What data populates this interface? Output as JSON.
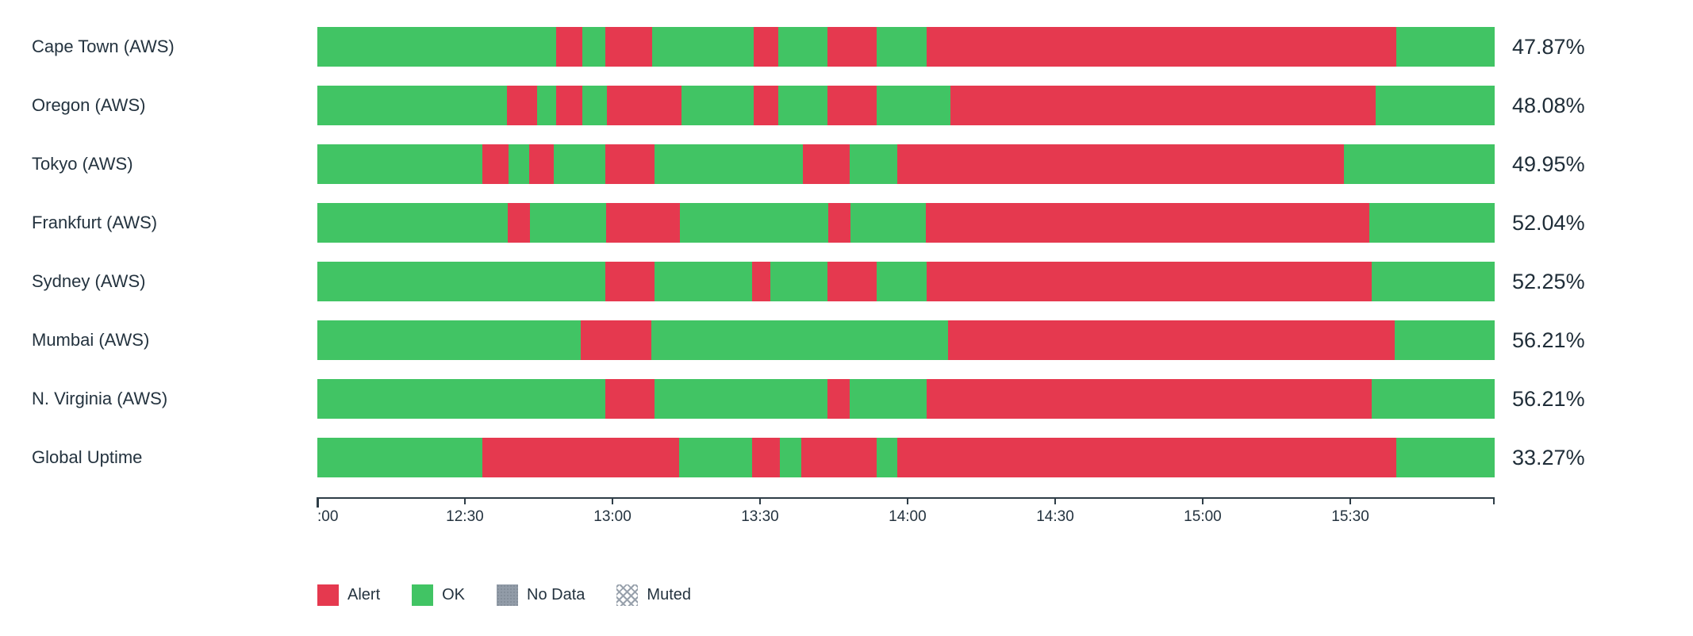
{
  "chart_data": {
    "type": "bar",
    "subtype": "status-timeline-horizontal",
    "title": "",
    "xlabel": "",
    "ylabel": "",
    "grid": false,
    "legend_position": "bottom-left",
    "x_axis": {
      "start": "12:00",
      "end": "16:00",
      "tick_interval_minutes": 30,
      "ticks": [
        {
          "label": ":00",
          "pos": 0,
          "align": "left"
        },
        {
          "label": "12:30",
          "pos": 12.53
        },
        {
          "label": "13:00",
          "pos": 25.07
        },
        {
          "label": "13:30",
          "pos": 37.6
        },
        {
          "label": "14:00",
          "pos": 50.13
        },
        {
          "label": "14:30",
          "pos": 62.67
        },
        {
          "label": "15:00",
          "pos": 75.2
        },
        {
          "label": "15:30",
          "pos": 87.74
        }
      ],
      "end_tick_pos": 100
    },
    "categories": [
      "Cape Town (AWS)",
      "Oregon (AWS)",
      "Tokyo (AWS)",
      "Frankfurt (AWS)",
      "Sydney (AWS)",
      "Mumbai (AWS)",
      "N. Virginia (AWS)",
      "Global Uptime"
    ],
    "values": [
      "47.87%",
      "48.08%",
      "49.95%",
      "52.04%",
      "52.25%",
      "56.21%",
      "56.21%",
      "33.27%"
    ],
    "rows": [
      {
        "label": "Cape Town (AWS)",
        "value": "47.87%",
        "segments": [
          {
            "status": "ok",
            "start": "12:00",
            "end": "12:49",
            "pct": 20.28
          },
          {
            "status": "alert",
            "start": "12:49",
            "end": "12:54",
            "pct": 2.22
          },
          {
            "status": "ok",
            "start": "12:54",
            "end": "12:59",
            "pct": 1.95
          },
          {
            "status": "alert",
            "start": "12:59",
            "end": "13:08",
            "pct": 3.98
          },
          {
            "status": "ok",
            "start": "13:08",
            "end": "13:29",
            "pct": 8.63
          },
          {
            "status": "alert",
            "start": "13:29",
            "end": "13:34",
            "pct": 2.09
          },
          {
            "status": "ok",
            "start": "13:34",
            "end": "13:44",
            "pct": 4.18
          },
          {
            "status": "alert",
            "start": "13:44",
            "end": "13:54",
            "pct": 4.18
          },
          {
            "status": "ok",
            "start": "13:54",
            "end": "14:04",
            "pct": 4.25
          },
          {
            "status": "alert",
            "start": "14:04",
            "end": "15:40",
            "pct": 39.89
          },
          {
            "status": "ok",
            "start": "15:40",
            "end": "16:00",
            "pct": 8.36
          }
        ]
      },
      {
        "label": "Oregon (AWS)",
        "value": "48.08%",
        "segments": [
          {
            "status": "ok",
            "start": "12:00",
            "end": "12:39",
            "pct": 16.11
          },
          {
            "status": "alert",
            "start": "12:39",
            "end": "12:45",
            "pct": 2.56
          },
          {
            "status": "ok",
            "start": "12:45",
            "end": "12:49",
            "pct": 1.62
          },
          {
            "status": "alert",
            "start": "12:49",
            "end": "12:54",
            "pct": 2.22
          },
          {
            "status": "ok",
            "start": "12:54",
            "end": "12:59",
            "pct": 2.09
          },
          {
            "status": "alert",
            "start": "12:59",
            "end": "13:14",
            "pct": 6.33
          },
          {
            "status": "ok",
            "start": "13:14",
            "end": "13:29",
            "pct": 6.13
          },
          {
            "status": "alert",
            "start": "13:29",
            "end": "13:34",
            "pct": 2.09
          },
          {
            "status": "ok",
            "start": "13:34",
            "end": "13:44",
            "pct": 4.18
          },
          {
            "status": "alert",
            "start": "13:44",
            "end": "13:54",
            "pct": 4.18
          },
          {
            "status": "ok",
            "start": "13:54",
            "end": "14:09",
            "pct": 6.27
          },
          {
            "status": "alert",
            "start": "14:09",
            "end": "15:36",
            "pct": 36.12
          },
          {
            "status": "ok",
            "start": "15:36",
            "end": "16:00",
            "pct": 10.11
          }
        ]
      },
      {
        "label": "Tokyo (AWS)",
        "value": "49.95%",
        "segments": [
          {
            "status": "ok",
            "start": "12:00",
            "end": "12:34",
            "pct": 14.02
          },
          {
            "status": "alert",
            "start": "12:34",
            "end": "12:39",
            "pct": 2.22
          },
          {
            "status": "ok",
            "start": "12:39",
            "end": "12:43",
            "pct": 1.75
          },
          {
            "status": "alert",
            "start": "12:43",
            "end": "12:48",
            "pct": 2.09
          },
          {
            "status": "ok",
            "start": "12:48",
            "end": "12:59",
            "pct": 4.38
          },
          {
            "status": "alert",
            "start": "12:59",
            "end": "13:09",
            "pct": 4.18
          },
          {
            "status": "ok",
            "start": "13:09",
            "end": "13:39",
            "pct": 12.6
          },
          {
            "status": "alert",
            "start": "13:39",
            "end": "13:49",
            "pct": 3.98
          },
          {
            "status": "ok",
            "start": "13:49",
            "end": "13:58",
            "pct": 4.04
          },
          {
            "status": "alert",
            "start": "13:58",
            "end": "15:29",
            "pct": 37.94
          },
          {
            "status": "ok",
            "start": "15:29",
            "end": "16:00",
            "pct": 12.8
          }
        ]
      },
      {
        "label": "Frankfurt (AWS)",
        "value": "52.04%",
        "segments": [
          {
            "status": "ok",
            "start": "12:00",
            "end": "12:39",
            "pct": 16.17
          },
          {
            "status": "alert",
            "start": "12:39",
            "end": "12:43",
            "pct": 1.89
          },
          {
            "status": "ok",
            "start": "12:43",
            "end": "12:59",
            "pct": 6.47
          },
          {
            "status": "alert",
            "start": "12:59",
            "end": "13:14",
            "pct": 6.27
          },
          {
            "status": "ok",
            "start": "13:14",
            "end": "13:44",
            "pct": 12.6
          },
          {
            "status": "alert",
            "start": "13:44",
            "end": "13:49",
            "pct": 1.89
          },
          {
            "status": "ok",
            "start": "13:49",
            "end": "14:04",
            "pct": 6.4
          },
          {
            "status": "alert",
            "start": "14:04",
            "end": "15:34",
            "pct": 37.67
          },
          {
            "status": "ok",
            "start": "15:34",
            "end": "16:00",
            "pct": 10.65
          }
        ]
      },
      {
        "label": "Sydney (AWS)",
        "value": "52.25%",
        "segments": [
          {
            "status": "ok",
            "start": "12:00",
            "end": "12:59",
            "pct": 24.46
          },
          {
            "status": "alert",
            "start": "12:59",
            "end": "13:09",
            "pct": 4.18
          },
          {
            "status": "ok",
            "start": "13:09",
            "end": "13:29",
            "pct": 8.29
          },
          {
            "status": "alert",
            "start": "13:29",
            "end": "13:32",
            "pct": 1.55
          },
          {
            "status": "ok",
            "start": "13:32",
            "end": "13:44",
            "pct": 4.85
          },
          {
            "status": "alert",
            "start": "13:44",
            "end": "13:54",
            "pct": 4.18
          },
          {
            "status": "ok",
            "start": "13:54",
            "end": "14:04",
            "pct": 4.25
          },
          {
            "status": "alert",
            "start": "14:04",
            "end": "15:35",
            "pct": 37.8
          },
          {
            "status": "ok",
            "start": "15:35",
            "end": "16:00",
            "pct": 10.44
          }
        ]
      },
      {
        "label": "Mumbai (AWS)",
        "value": "56.21%",
        "segments": [
          {
            "status": "ok",
            "start": "12:00",
            "end": "12:54",
            "pct": 22.37
          },
          {
            "status": "alert",
            "start": "12:54",
            "end": "13:08",
            "pct": 6.0
          },
          {
            "status": "ok",
            "start": "13:08",
            "end": "14:09",
            "pct": 25.2
          },
          {
            "status": "alert",
            "start": "14:09",
            "end": "15:40",
            "pct": 37.94
          },
          {
            "status": "ok",
            "start": "15:40",
            "end": "16:00",
            "pct": 8.49
          }
        ]
      },
      {
        "label": "N. Virginia (AWS)",
        "value": "56.21%",
        "segments": [
          {
            "status": "ok",
            "start": "12:00",
            "end": "12:59",
            "pct": 24.46
          },
          {
            "status": "alert",
            "start": "12:59",
            "end": "13:09",
            "pct": 4.18
          },
          {
            "status": "ok",
            "start": "13:09",
            "end": "13:44",
            "pct": 14.69
          },
          {
            "status": "alert",
            "start": "13:44",
            "end": "13:49",
            "pct": 1.89
          },
          {
            "status": "ok",
            "start": "13:49",
            "end": "14:04",
            "pct": 6.54
          },
          {
            "status": "alert",
            "start": "14:04",
            "end": "15:35",
            "pct": 37.8
          },
          {
            "status": "ok",
            "start": "15:35",
            "end": "16:00",
            "pct": 10.44
          }
        ]
      },
      {
        "label": "Global Uptime",
        "value": "33.27%",
        "segments": [
          {
            "status": "ok",
            "start": "12:00",
            "end": "12:34",
            "pct": 14.02
          },
          {
            "status": "alert",
            "start": "12:34",
            "end": "13:14",
            "pct": 16.71
          },
          {
            "status": "ok",
            "start": "13:14",
            "end": "13:29",
            "pct": 6.2
          },
          {
            "status": "alert",
            "start": "13:29",
            "end": "13:34",
            "pct": 2.36
          },
          {
            "status": "ok",
            "start": "13:34",
            "end": "13:39",
            "pct": 1.82
          },
          {
            "status": "alert",
            "start": "13:39",
            "end": "13:54",
            "pct": 6.4
          },
          {
            "status": "ok",
            "start": "13:54",
            "end": "13:58",
            "pct": 1.75
          },
          {
            "status": "alert",
            "start": "13:58",
            "end": "15:40",
            "pct": 42.39
          },
          {
            "status": "ok",
            "start": "15:40",
            "end": "16:00",
            "pct": 8.36
          }
        ]
      }
    ]
  },
  "legend": {
    "items": [
      {
        "label": "Alert",
        "type": "alert"
      },
      {
        "label": "OK",
        "type": "ok"
      },
      {
        "label": "No Data",
        "type": "nodata"
      },
      {
        "label": "Muted",
        "type": "muted"
      }
    ]
  },
  "colors": {
    "ok": "#41c464",
    "alert": "#e5394f",
    "nodata": "#929ca8",
    "text": "#24333f",
    "axis": "#2e3d47"
  }
}
